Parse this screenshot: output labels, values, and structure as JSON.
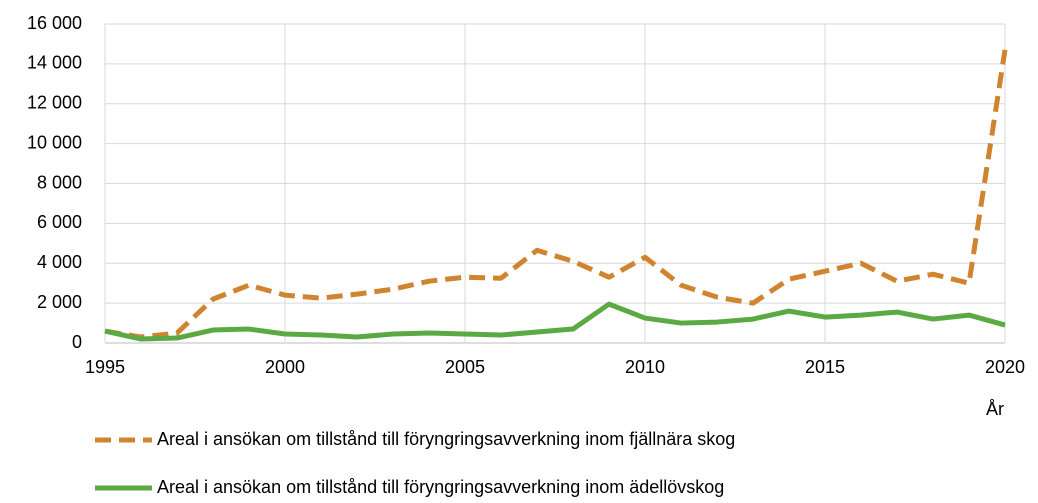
{
  "chart_data": {
    "type": "line",
    "x_label": "År",
    "x": [
      1995,
      1996,
      1997,
      1998,
      1999,
      2000,
      2001,
      2002,
      2003,
      2004,
      2005,
      2006,
      2007,
      2008,
      2009,
      2010,
      2011,
      2012,
      2013,
      2014,
      2015,
      2016,
      2017,
      2018,
      2019,
      2020
    ],
    "xlim": [
      1995,
      2020
    ],
    "xticks": [
      1995,
      2000,
      2005,
      2010,
      2015,
      2020
    ],
    "ylim": [
      0,
      16000
    ],
    "yticks": [
      0,
      {
        "value": 2000,
        "label": "2 000"
      },
      {
        "value": 4000,
        "label": "4 000"
      },
      {
        "value": 6000,
        "label": "6 000"
      },
      {
        "value": 8000,
        "label": "8 000"
      },
      {
        "value": 10000,
        "label": "10 000"
      },
      {
        "value": 12000,
        "label": "12 000"
      },
      {
        "value": 14000,
        "label": "14 000"
      },
      {
        "value": 16000,
        "label": "16 000"
      }
    ],
    "grid": true,
    "legend": "bottom",
    "series": [
      {
        "name": "Areal i ansökan om tillstånd till föryngringsavverkning inom fjällnära skog",
        "color": "#d0842f",
        "dashed": true,
        "values": [
          600,
          300,
          500,
          2200,
          2900,
          2400,
          2250,
          2450,
          2700,
          3100,
          3300,
          3250,
          4650,
          4100,
          3300,
          4300,
          2900,
          2300,
          2000,
          3200,
          3600,
          4000,
          3100,
          3450,
          3000,
          14700
        ]
      },
      {
        "name": "Areal i ansökan om tillstånd till föryngringsavverkning inom ädellövskog",
        "color": "#5aa943",
        "dashed": false,
        "values": [
          600,
          200,
          250,
          650,
          700,
          450,
          400,
          300,
          450,
          500,
          450,
          400,
          550,
          700,
          1950,
          1250,
          1000,
          1050,
          1200,
          1600,
          1300,
          1400,
          1550,
          1200,
          1400,
          900
        ]
      }
    ]
  }
}
